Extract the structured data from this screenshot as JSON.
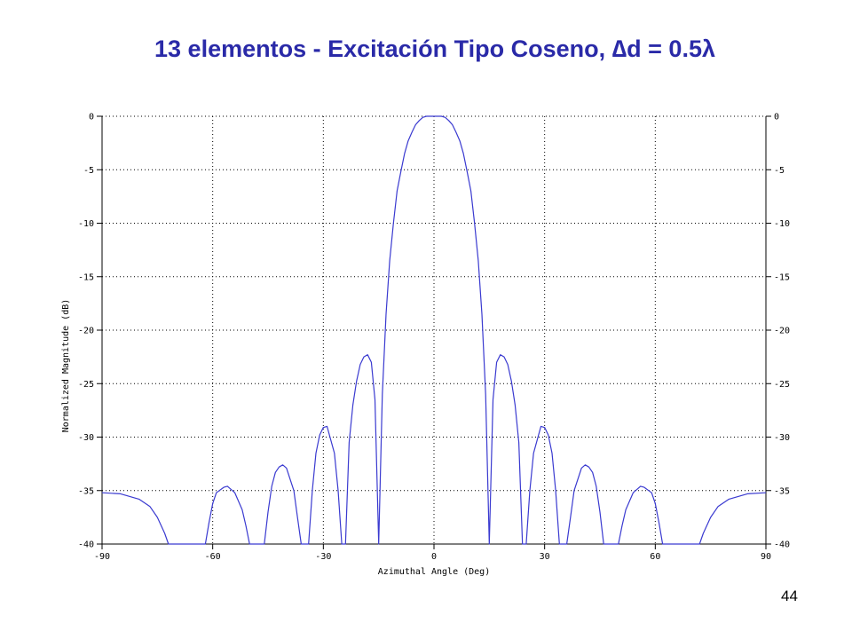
{
  "slide": {
    "title": "13 elementos - Excitación Tipo Coseno, ∆d = 0.5λ",
    "page_number": "44"
  },
  "colors": {
    "title": "#2a2aa8",
    "curve": "#3a3ad0",
    "grid": "#000000"
  },
  "chart_data": {
    "type": "line",
    "title": "",
    "xlabel": "Azimuthal Angle (Deg)",
    "ylabel": "Normalized Magnitude (dB)",
    "xlim": [
      -90,
      90
    ],
    "ylim": [
      -40,
      0
    ],
    "xticks": [
      -90,
      -60,
      -30,
      0,
      30,
      60,
      90
    ],
    "xtick_labels": [
      "-90",
      "-60",
      "-30",
      "0",
      "30",
      "60",
      "90"
    ],
    "yticks": [
      0,
      -5,
      -10,
      -15,
      -20,
      -25,
      -30,
      -35,
      -40
    ],
    "ytick_labels": [
      "0",
      "-5",
      "-10",
      "-15",
      "-20",
      "-25",
      "-30",
      "-35",
      "-40"
    ],
    "grid": true,
    "grid_style": "dotted",
    "right_axis_mirrored": true,
    "series": [
      {
        "x": [
          -90,
          -85,
          -80,
          -77,
          -75,
          -73,
          -72,
          -71,
          -62,
          -61,
          -60,
          -59,
          -57,
          -56,
          -54,
          -52,
          -51,
          -50,
          -46,
          -45,
          -44,
          -43,
          -42,
          -41,
          -40,
          -38,
          -37,
          -36,
          -34,
          -33,
          -32,
          -31,
          -30,
          -29,
          -27,
          -26,
          -25,
          -24,
          -23,
          -22,
          -21,
          -20,
          -19,
          -18,
          -17,
          -16,
          -15,
          -15,
          -14,
          -13,
          -12,
          -11,
          -10,
          -9,
          -8,
          -7,
          -6,
          -5,
          -4,
          -3,
          -2,
          -1,
          0,
          1,
          2,
          3,
          4,
          5,
          6,
          7,
          8,
          9,
          10,
          11,
          12,
          13,
          14,
          15,
          15,
          16,
          17,
          18,
          19,
          20,
          21,
          22,
          23,
          24,
          25,
          26,
          27,
          29,
          30,
          31,
          32,
          33,
          34,
          36,
          37,
          38,
          40,
          41,
          42,
          43,
          44,
          45,
          46,
          50,
          51,
          52,
          54,
          56,
          57,
          59,
          60,
          61,
          62,
          71,
          72,
          73,
          75,
          77,
          80,
          85,
          90
        ],
        "y": [
          -35.2,
          -35.3,
          -35.8,
          -36.5,
          -37.5,
          -39.0,
          -40.0,
          -40.0,
          -40.0,
          -38.0,
          -36.2,
          -35.2,
          -34.7,
          -34.6,
          -35.2,
          -36.8,
          -38.3,
          -40.0,
          -40.0,
          -37.0,
          -34.6,
          -33.3,
          -32.8,
          -32.6,
          -32.9,
          -35.0,
          -37.5,
          -40.0,
          -40.0,
          -35.0,
          -31.5,
          -29.8,
          -29.1,
          -29.0,
          -31.5,
          -35.0,
          -40.0,
          -40.0,
          -30.5,
          -27.0,
          -24.8,
          -23.2,
          -22.5,
          -22.3,
          -23.0,
          -26.5,
          -40.0,
          -40.0,
          -26.0,
          -18.5,
          -13.5,
          -10.0,
          -7.0,
          -5.2,
          -3.5,
          -2.3,
          -1.5,
          -0.8,
          -0.4,
          -0.1,
          0.0,
          0.0,
          0.0,
          0.0,
          0.0,
          -0.1,
          -0.4,
          -0.8,
          -1.5,
          -2.3,
          -3.5,
          -5.2,
          -7.0,
          -10.0,
          -13.5,
          -18.5,
          -26.0,
          -40.0,
          -40.0,
          -26.5,
          -23.0,
          -22.3,
          -22.5,
          -23.2,
          -24.8,
          -27.0,
          -30.5,
          -40.0,
          -40.0,
          -35.0,
          -31.5,
          -29.0,
          -29.1,
          -29.8,
          -31.5,
          -35.0,
          -40.0,
          -40.0,
          -37.5,
          -35.0,
          -32.9,
          -32.6,
          -32.8,
          -33.3,
          -34.6,
          -37.0,
          -40.0,
          -40.0,
          -38.3,
          -36.8,
          -35.2,
          -34.6,
          -34.7,
          -35.2,
          -36.2,
          -38.0,
          -40.0,
          -40.0,
          -40.0,
          -39.0,
          -37.5,
          -36.5,
          -35.8,
          -35.3,
          -35.2
        ]
      }
    ]
  }
}
